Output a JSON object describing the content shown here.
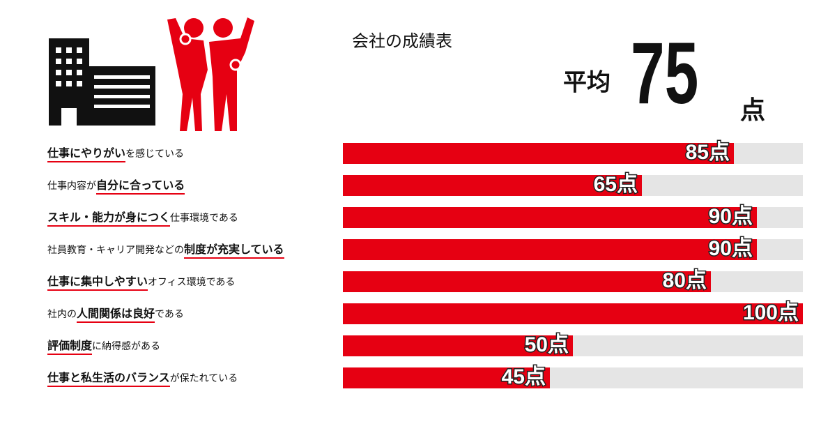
{
  "chart_data": {
    "type": "bar",
    "title": "会社の成績表",
    "average_label": "平均",
    "average": 75,
    "average_unit": "点",
    "categories": [
      [
        {
          "text": "仕事にやりがい",
          "bold": true
        },
        {
          "text": "を感じている",
          "bold": false
        }
      ],
      [
        {
          "text": "仕事内容が",
          "bold": false
        },
        {
          "text": "自分に合っている",
          "bold": true
        }
      ],
      [
        {
          "text": "スキル・能力が身につく",
          "bold": true
        },
        {
          "text": "仕事環境である",
          "bold": false
        }
      ],
      [
        {
          "text": "社員教育・キャリア開発などの",
          "bold": false
        },
        {
          "text": "制度が充実している",
          "bold": true
        }
      ],
      [
        {
          "text": "仕事に集中しやすい",
          "bold": true
        },
        {
          "text": "オフィス環境である",
          "bold": false
        }
      ],
      [
        {
          "text": "社内の",
          "bold": false
        },
        {
          "text": "人間関係は良好",
          "bold": true
        },
        {
          "text": "である",
          "bold": false
        }
      ],
      [
        {
          "text": "評価制度",
          "bold": true
        },
        {
          "text": "に納得感がある",
          "bold": false
        }
      ],
      [
        {
          "text": "仕事と私生活のバランス",
          "bold": true
        },
        {
          "text": "が保たれている",
          "bold": false
        }
      ]
    ],
    "values": [
      85,
      65,
      90,
      90,
      80,
      100,
      50,
      45
    ],
    "value_labels": [
      "85点",
      "65点",
      "90点",
      "90点",
      "80点",
      "100点",
      "50点",
      "45点"
    ],
    "color": "#e60012",
    "track_color": "#e5e5e5",
    "xlim": [
      0,
      100
    ]
  }
}
